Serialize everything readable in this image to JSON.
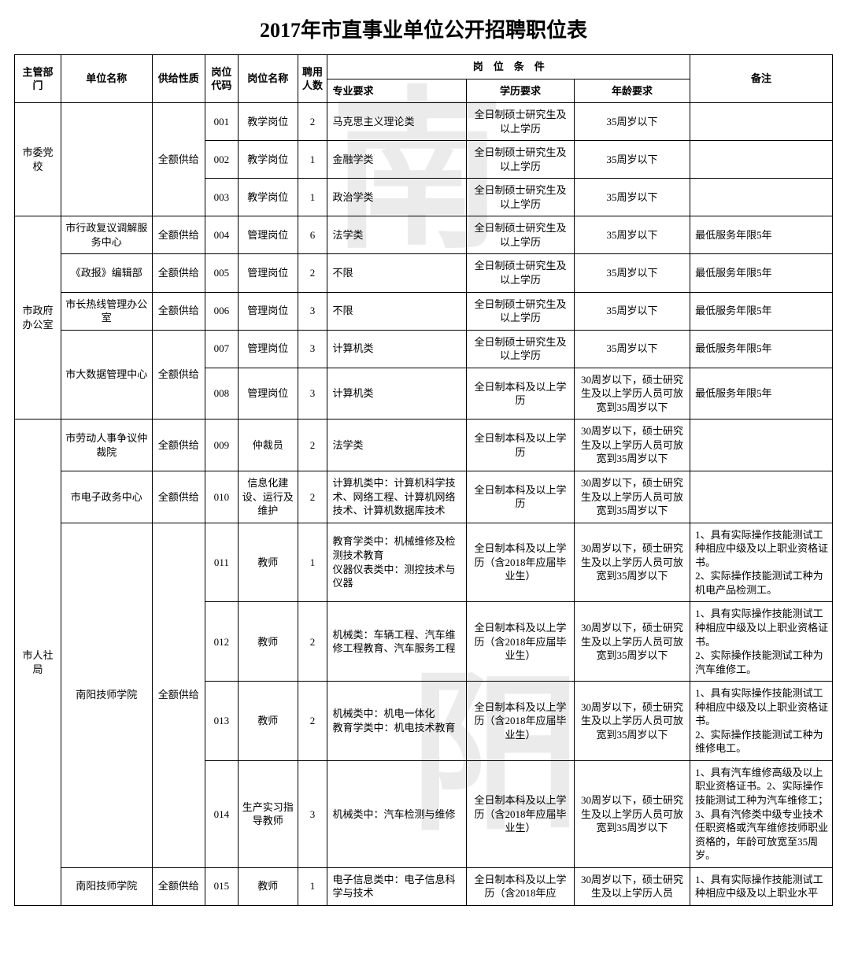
{
  "title": "2017年市直事业单位公开招聘职位表",
  "headers": {
    "dept": "主管部门",
    "unit": "单位名称",
    "supply": "供给性质",
    "code": "岗位代码",
    "position": "岗位名称",
    "count": "聘用人数",
    "conditions": "岗　位　条　件",
    "major": "专业要求",
    "education": "学历要求",
    "age": "年龄要求",
    "remark": "备注"
  },
  "depts": [
    {
      "name": "市委党校",
      "units": [
        {
          "name": "",
          "rows": [
            {
              "supply": "全额供给",
              "code": "001",
              "pos": "教学岗位",
              "count": "2",
              "major": "马克思主义理论类",
              "edu": "全日制硕士研究生及以上学历",
              "age": "35周岁以下",
              "remark": ""
            },
            {
              "supply": "全额供给",
              "code": "002",
              "pos": "教学岗位",
              "count": "1",
              "major": "金融学类",
              "edu": "全日制硕士研究生及以上学历",
              "age": "35周岁以下",
              "remark": ""
            },
            {
              "supply": "全额供给",
              "code": "003",
              "pos": "教学岗位",
              "count": "1",
              "major": "政治学类",
              "edu": "全日制硕士研究生及以上学历",
              "age": "35周岁以下",
              "remark": ""
            }
          ]
        }
      ]
    },
    {
      "name": "市政府办公室",
      "units": [
        {
          "name": "市行政复议调解服务中心",
          "rows": [
            {
              "supply": "全额供给",
              "code": "004",
              "pos": "管理岗位",
              "count": "6",
              "major": "法学类",
              "edu": "全日制硕士研究生及以上学历",
              "age": "35周岁以下",
              "remark": "最低服务年限5年"
            }
          ]
        },
        {
          "name": "《政报》编辑部",
          "rows": [
            {
              "supply": "全额供给",
              "code": "005",
              "pos": "管理岗位",
              "count": "2",
              "major": "不限",
              "edu": "全日制硕士研究生及以上学历",
              "age": "35周岁以下",
              "remark": "最低服务年限5年"
            }
          ]
        },
        {
          "name": "市长热线管理办公室",
          "rows": [
            {
              "supply": "全额供给",
              "code": "006",
              "pos": "管理岗位",
              "count": "3",
              "major": "不限",
              "edu": "全日制硕士研究生及以上学历",
              "age": "35周岁以下",
              "remark": "最低服务年限5年"
            }
          ]
        },
        {
          "name": "市大数据管理中心",
          "rows": [
            {
              "supply": "全额供给",
              "code": "007",
              "pos": "管理岗位",
              "count": "3",
              "major": "计算机类",
              "edu": "全日制硕士研究生及以上学历",
              "age": "35周岁以下",
              "remark": "最低服务年限5年"
            },
            {
              "supply": "",
              "code": "008",
              "pos": "管理岗位",
              "count": "3",
              "major": "计算机类",
              "edu": "全日制本科及以上学历",
              "age": "30周岁以下，硕士研究生及以上学历人员可放宽到35周岁以下",
              "remark": "最低服务年限5年"
            }
          ]
        }
      ]
    },
    {
      "name": "市人社局",
      "units": [
        {
          "name": "市劳动人事争议仲裁院",
          "rows": [
            {
              "supply": "全额供给",
              "code": "009",
              "pos": "仲裁员",
              "count": "2",
              "major": "法学类",
              "edu": "全日制本科及以上学历",
              "age": "30周岁以下，硕士研究生及以上学历人员可放宽到35周岁以下",
              "remark": ""
            }
          ]
        },
        {
          "name": "市电子政务中心",
          "rows": [
            {
              "supply": "全额供给",
              "code": "010",
              "pos": "信息化建设、运行及维护",
              "count": "2",
              "major": "计算机类中：计算机科学技术、网络工程、计算机网络技术、计算机数据库技术",
              "edu": "全日制本科及以上学历",
              "age": "30周岁以下，硕士研究生及以上学历人员可放宽到35周岁以下",
              "remark": ""
            }
          ]
        },
        {
          "name": "南阳技师学院",
          "rows": [
            {
              "supply": "全额供给",
              "code": "011",
              "pos": "教师",
              "count": "1",
              "major": "教育学类中：机械维修及检测技术教育\n仪器仪表类中：测控技术与仪器",
              "edu": "全日制本科及以上学历（含2018年应届毕业生）",
              "age": "30周岁以下，硕士研究生及以上学历人员可放宽到35周岁以下",
              "remark": "1、具有实际操作技能测试工种相应中级及以上职业资格证书。\n2、实际操作技能测试工种为机电产品检测工。"
            },
            {
              "supply": "全额供给",
              "code": "012",
              "pos": "教师",
              "count": "2",
              "major": "机械类：车辆工程、汽车维修工程教育、汽车服务工程",
              "edu": "全日制本科及以上学历（含2018年应届毕业生）",
              "age": "30周岁以下，硕士研究生及以上学历人员可放宽到35周岁以下",
              "remark": "1、具有实际操作技能测试工种相应中级及以上职业资格证书。\n2、实际操作技能测试工种为汽车维修工。"
            },
            {
              "supply": "全额供给",
              "code": "013",
              "pos": "教师",
              "count": "2",
              "major": "机械类中：机电一体化\n教育学类中：机电技术教育",
              "edu": "全日制本科及以上学历（含2018年应届毕业生）",
              "age": "30周岁以下，硕士研究生及以上学历人员可放宽到35周岁以下",
              "remark": "1、具有实际操作技能测试工种相应中级及以上职业资格证书。\n2、实际操作技能测试工种为维修电工。"
            },
            {
              "supply": "全额供给",
              "code": "014",
              "pos": "生产实习指导教师",
              "count": "3",
              "major": "机械类中：汽车检测与维修",
              "edu": "全日制本科及以上学历（含2018年应届毕业生）",
              "age": "30周岁以下，硕士研究生及以上学历人员可放宽到35周岁以下",
              "remark": "1、具有汽车维修高级及以上职业资格证书。2、实际操作技能测试工种为汽车维修工；3、具有汽修类中级专业技术任职资格或汽车维修技师职业资格的，年龄可放宽至35周岁。"
            }
          ]
        },
        {
          "name": "南阳技师学院",
          "rows": [
            {
              "supply": "全额供给",
              "code": "015",
              "pos": "教师",
              "count": "1",
              "major": "电子信息类中：电子信息科学与技术",
              "edu": "全日制本科及以上学历（含2018年应",
              "age": "30周岁以下，硕士研究生及以上学历人员",
              "remark": "1、具有实际操作技能测试工种相应中级及以上职业水平"
            }
          ]
        }
      ]
    }
  ]
}
